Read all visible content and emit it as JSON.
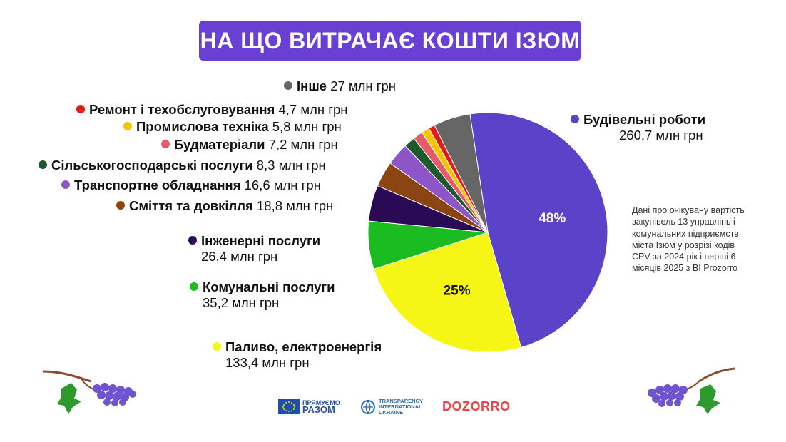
{
  "title": "НА ЩО ВИТРАЧАЄ КОШТИ ІЗЮМ",
  "note": "Дані про очікувану вартість закупівель 13 управлінь і комунальних підприємств міста Ізюм у розрізі кодів CPV за 2024 рік і перші 6 місяців 2025 з BI Prozorro",
  "logos": {
    "eu_line1": "ПРЯМУЄМО",
    "eu_line2": "РАЗОМ",
    "ti_line1": "TRANSPARENCY",
    "ti_line2": "INTERNATIONAL",
    "ti_line3": "UKRAINE",
    "dozorro": "DOZORRO"
  },
  "chart_data": {
    "type": "pie",
    "title": "НА ЩО ВИТРАЧАЄ КОШТИ ІЗЮМ",
    "unit": "млн грн",
    "slices": [
      {
        "name": "Будівельні роботи",
        "value": 260.7,
        "value_label": "260,7 млн грн",
        "color": "#5b43c9",
        "pct_label": "48%"
      },
      {
        "name": "Паливо, електроенергія",
        "value": 133.4,
        "value_label": "133,4 млн грн",
        "color": "#f5f516",
        "pct_label": "25%"
      },
      {
        "name": "Комунальні послуги",
        "value": 35.2,
        "value_label": "35,2 млн грн",
        "color": "#1bbb22",
        "pct_label": ""
      },
      {
        "name": "Інженерні послуги",
        "value": 26.4,
        "value_label": "26,4 млн грн",
        "color": "#2a0a55",
        "pct_label": ""
      },
      {
        "name": "Сміття та довкілля",
        "value": 18.8,
        "value_label": "18,8 млн грн",
        "color": "#8b4513",
        "pct_label": ""
      },
      {
        "name": "Транспортне обладнання",
        "value": 16.6,
        "value_label": "16,6 млн грн",
        "color": "#8e55c9",
        "pct_label": ""
      },
      {
        "name": "Сільськогосподарські послуги",
        "value": 8.3,
        "value_label": "8,3 млн грн",
        "color": "#1f5a2e",
        "pct_label": ""
      },
      {
        "name": "Будматеріали",
        "value": 7.2,
        "value_label": "7,2 млн грн",
        "color": "#e65a6a",
        "pct_label": ""
      },
      {
        "name": "Промислова техніка",
        "value": 5.8,
        "value_label": "5,8 млн грн",
        "color": "#f5c400",
        "pct_label": ""
      },
      {
        "name": "Ремонт і техобслуговування",
        "value": 4.7,
        "value_label": "4,7 млн грн",
        "color": "#e21b1b",
        "pct_label": ""
      },
      {
        "name": "Інше",
        "value": 27,
        "value_label": "27 млн грн",
        "color": "#666666",
        "pct_label": ""
      }
    ]
  }
}
